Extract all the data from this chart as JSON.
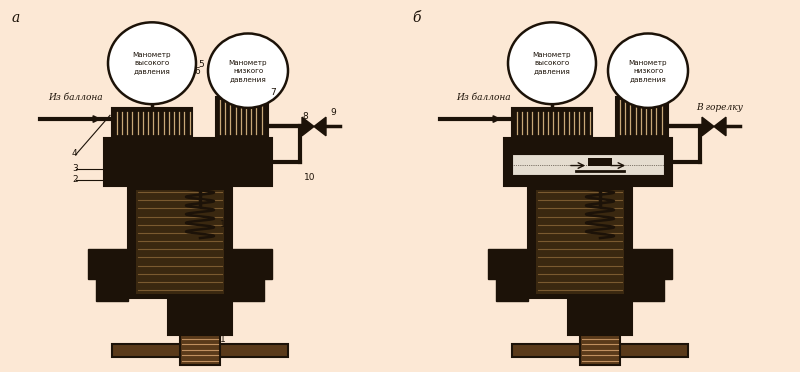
{
  "bg_left": "#fce8d5",
  "bg_right": "#f2ede8",
  "label_a": "а",
  "label_b": "б",
  "gauge1_text": "Манометр\nвысокого\nдавления",
  "gauge2_text": "Манометр\nнизкого\nдавления",
  "iz_ballona": "Из баллона",
  "v_gorelku": "В горелку",
  "dark": "#1c1208",
  "brown": "#5a3a1a",
  "hatch_light": "#c8a878",
  "gauge_fill": "#ffffff",
  "mid_gray": "#3a2810"
}
